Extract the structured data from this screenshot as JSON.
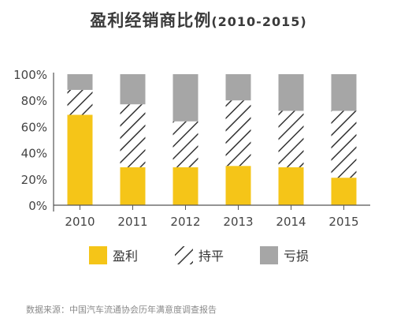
{
  "chart_data": {
    "type": "bar",
    "stacked": true,
    "percent": true,
    "title": "盈利经销商比例",
    "subtitle": "(2010-2015)",
    "categories": [
      "2010",
      "2011",
      "2012",
      "2013",
      "2014",
      "2015"
    ],
    "series": [
      {
        "name": "盈利",
        "values": [
          69,
          29,
          29,
          30,
          29,
          21
        ],
        "color": "#f5c518",
        "pattern": "solid"
      },
      {
        "name": "持平",
        "values": [
          19,
          48,
          35,
          50,
          43,
          51
        ],
        "color": "#333333",
        "pattern": "hatch"
      },
      {
        "name": "亏损",
        "values": [
          12,
          23,
          36,
          20,
          28,
          28
        ],
        "color": "#a6a6a6",
        "pattern": "solid"
      }
    ],
    "ylim": [
      0,
      100
    ],
    "yticks": [
      "0%",
      "20%",
      "40%",
      "60%",
      "80%",
      "100%"
    ],
    "grid": false,
    "legend": "bottom"
  },
  "footer": {
    "source": "数据来源：中国汽车流通协会历年满意度调查报告"
  }
}
